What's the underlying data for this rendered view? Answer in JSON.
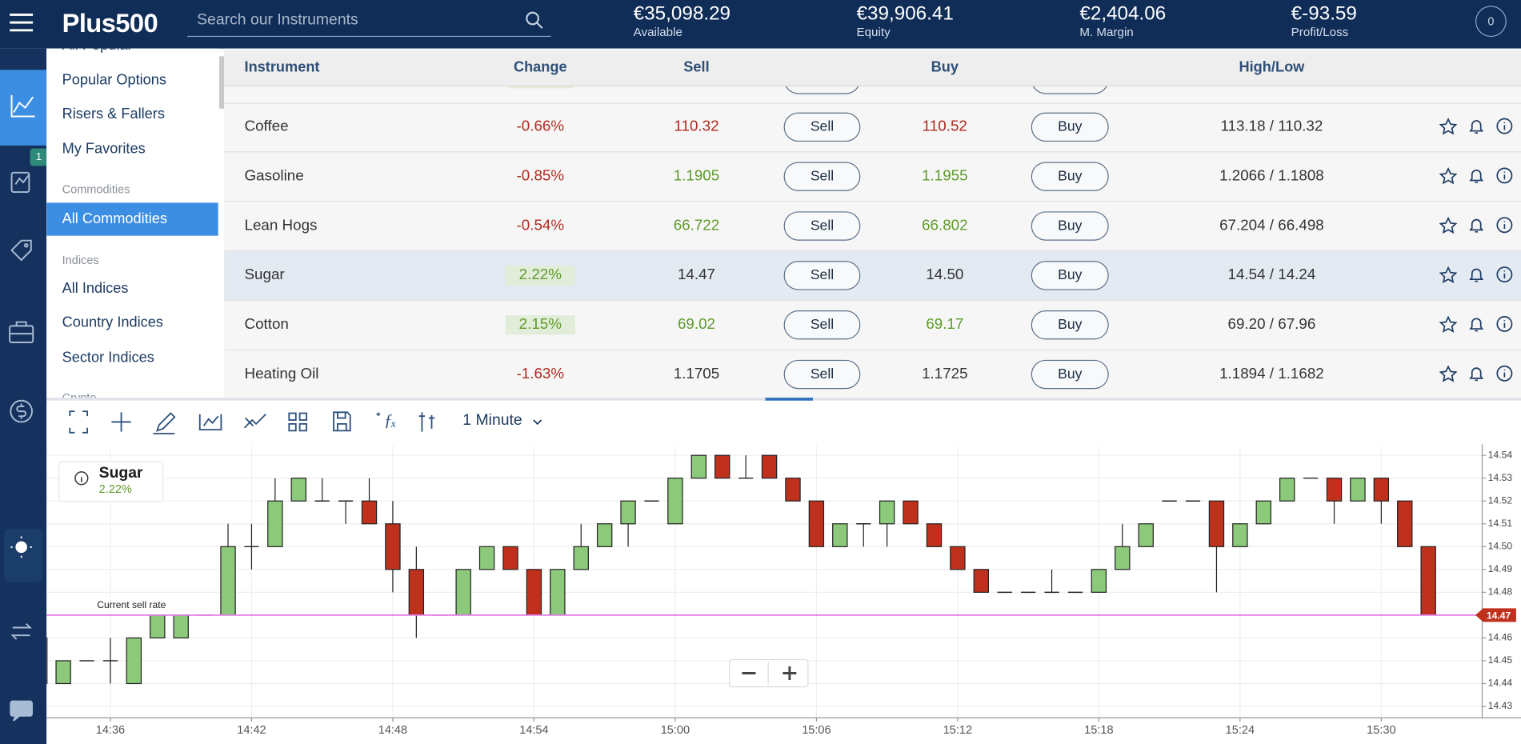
{
  "header": {
    "logo": "Plus500",
    "search_placeholder": "Search our Instruments",
    "stats": [
      {
        "value": "€35,098.29",
        "label": "Available"
      },
      {
        "value": "€39,906.41",
        "label": "Equity"
      },
      {
        "value": "€2,404.06",
        "label": "M. Margin"
      },
      {
        "value": "€-93.59",
        "label": "Profit/Loss"
      }
    ],
    "notifications": "0"
  },
  "rail": {
    "badge": "1"
  },
  "menu": {
    "items": [
      "All Popular",
      "Popular Options",
      "Risers & Fallers",
      "My Favorites"
    ],
    "commodities_heading": "Commodities",
    "commodities_items": [
      "All Commodities"
    ],
    "indices_heading": "Indices",
    "indices_items": [
      "All Indices",
      "Country Indices",
      "Sector Indices"
    ],
    "crypto_heading": "Crypto"
  },
  "table": {
    "columns": [
      "Instrument",
      "Change",
      "Sell",
      "Buy",
      "High/Low"
    ],
    "sell_button": "Sell",
    "buy_button": "Buy",
    "rows": [
      {
        "instrument": "Coffee",
        "change": "-0.66%",
        "sell": "110.32",
        "buy": "110.52",
        "high_low": "113.18 / 110.32",
        "change_color": "#b02a1f",
        "price_color": "#b02a1f"
      },
      {
        "instrument": "Gasoline",
        "change": "-0.85%",
        "sell": "1.1905",
        "buy": "1.1955",
        "high_low": "1.2066 / 1.1808",
        "change_color": "#b02a1f",
        "price_color": "#5e9a2c"
      },
      {
        "instrument": "Lean Hogs",
        "change": "-0.54%",
        "sell": "66.722",
        "buy": "66.802",
        "high_low": "67.204 / 66.498",
        "change_color": "#b02a1f",
        "price_color": "#5e9a2c"
      },
      {
        "instrument": "Sugar",
        "change": "2.22%",
        "sell": "14.47",
        "buy": "14.50",
        "high_low": "14.54 / 14.24",
        "change_color": "#5e9a2c",
        "change_bg": "#e2edd9",
        "price_color": "#333333"
      },
      {
        "instrument": "Cotton",
        "change": "2.15%",
        "sell": "69.02",
        "buy": "69.17",
        "high_low": "69.20 / 67.96",
        "change_color": "#5e9a2c",
        "change_bg": "#e2edd9",
        "price_color": "#5e9a2c"
      },
      {
        "instrument": "Heating Oil",
        "change": "-1.63%",
        "sell": "1.1705",
        "buy": "1.1725",
        "high_low": "1.1894 / 1.1682",
        "change_color": "#b02a1f",
        "price_color": "#333333"
      }
    ]
  },
  "chart_toolbar": {
    "interval": "1 Minute"
  },
  "chart_data": {
    "type": "candlestick",
    "title": "Sugar",
    "subtitle": "2.22%",
    "annotation": "Current sell rate",
    "current_value": 14.47,
    "current_color": "#e07ae4",
    "current_tag_color": "#c0311d",
    "up_color": "#8dc97b",
    "down_color": "#c0311d",
    "x": [
      "14:33",
      "14:34",
      "14:35",
      "14:36",
      "14:37",
      "14:38",
      "14:39",
      "14:40",
      "14:41",
      "14:42",
      "14:43",
      "14:44",
      "14:45",
      "14:46",
      "14:47",
      "14:48",
      "14:49",
      "14:50",
      "14:51",
      "14:52",
      "14:53",
      "14:54",
      "14:55",
      "14:56",
      "14:57",
      "14:58",
      "14:59",
      "15:00",
      "15:01",
      "15:02",
      "15:03",
      "15:04",
      "15:05",
      "15:06",
      "15:07",
      "15:08",
      "15:09",
      "15:10",
      "15:11",
      "15:12",
      "15:13",
      "15:14",
      "15:15",
      "15:16",
      "15:17",
      "15:18",
      "15:19",
      "15:20",
      "15:21",
      "15:22",
      "15:23",
      "15:24",
      "15:25",
      "15:26",
      "15:27",
      "15:28",
      "15:29",
      "15:30",
      "15:31",
      "15:32"
    ],
    "open": [
      14.46,
      14.44,
      14.45,
      14.45,
      14.44,
      14.46,
      14.46,
      14.47,
      14.47,
      14.5,
      14.5,
      14.52,
      14.52,
      14.52,
      14.52,
      14.51,
      14.49,
      14.47,
      14.47,
      14.49,
      14.5,
      14.49,
      14.47,
      14.49,
      14.5,
      14.51,
      14.52,
      14.51,
      14.53,
      14.54,
      14.53,
      14.54,
      14.53,
      14.52,
      14.5,
      14.51,
      14.51,
      14.52,
      14.51,
      14.5,
      14.49,
      14.48,
      14.48,
      14.48,
      14.48,
      14.48,
      14.49,
      14.5,
      14.52,
      14.52,
      14.52,
      14.5,
      14.51,
      14.52,
      14.53,
      14.53,
      14.52,
      14.53,
      14.52,
      14.5
    ],
    "high": [
      14.46,
      14.45,
      14.45,
      14.46,
      14.46,
      14.47,
      14.47,
      14.47,
      14.51,
      14.51,
      14.53,
      14.53,
      14.53,
      14.52,
      14.53,
      14.52,
      14.5,
      14.47,
      14.49,
      14.5,
      14.5,
      14.49,
      14.49,
      14.51,
      14.51,
      14.52,
      14.52,
      14.53,
      14.54,
      14.54,
      14.54,
      14.54,
      14.53,
      14.52,
      14.51,
      14.51,
      14.52,
      14.52,
      14.51,
      14.5,
      14.49,
      14.48,
      14.48,
      14.49,
      14.48,
      14.49,
      14.51,
      14.51,
      14.52,
      14.52,
      14.52,
      14.51,
      14.52,
      14.53,
      14.53,
      14.53,
      14.53,
      14.53,
      14.52,
      14.5
    ],
    "low": [
      14.44,
      14.44,
      14.45,
      14.44,
      14.44,
      14.46,
      14.46,
      14.47,
      14.47,
      14.49,
      14.5,
      14.52,
      14.52,
      14.51,
      14.51,
      14.48,
      14.46,
      14.47,
      14.47,
      14.49,
      14.49,
      14.47,
      14.47,
      14.49,
      14.5,
      14.5,
      14.52,
      14.51,
      14.53,
      14.53,
      14.53,
      14.53,
      14.52,
      14.5,
      14.5,
      14.5,
      14.5,
      14.51,
      14.5,
      14.49,
      14.48,
      14.48,
      14.48,
      14.48,
      14.48,
      14.48,
      14.49,
      14.5,
      14.52,
      14.52,
      14.48,
      14.5,
      14.51,
      14.52,
      14.53,
      14.51,
      14.52,
      14.51,
      14.5,
      14.47
    ],
    "close": [
      14.44,
      14.45,
      14.45,
      14.45,
      14.46,
      14.47,
      14.47,
      14.47,
      14.5,
      14.5,
      14.52,
      14.53,
      14.52,
      14.52,
      14.51,
      14.49,
      14.47,
      14.47,
      14.49,
      14.5,
      14.49,
      14.47,
      14.49,
      14.5,
      14.51,
      14.52,
      14.52,
      14.53,
      14.54,
      14.53,
      14.53,
      14.53,
      14.52,
      14.5,
      14.51,
      14.51,
      14.52,
      14.51,
      14.5,
      14.49,
      14.48,
      14.48,
      14.48,
      14.48,
      14.48,
      14.49,
      14.5,
      14.51,
      14.52,
      14.52,
      14.5,
      14.51,
      14.52,
      14.53,
      14.53,
      14.52,
      14.53,
      14.52,
      14.5,
      14.47
    ],
    "xlim": [
      "14:33",
      "15:34"
    ],
    "xticks": [
      "14:36",
      "14:42",
      "14:48",
      "14:54",
      "15:00",
      "15:06",
      "15:12",
      "15:18",
      "15:24",
      "15:30"
    ],
    "ylim": [
      14.425,
      14.544
    ],
    "yticks": [
      14.43,
      14.44,
      14.45,
      14.46,
      14.47,
      14.48,
      14.49,
      {
        "value": 14.5,
        "label": "14.50"
      },
      14.51,
      14.52,
      14.53,
      14.54
    ],
    "grid": true
  }
}
